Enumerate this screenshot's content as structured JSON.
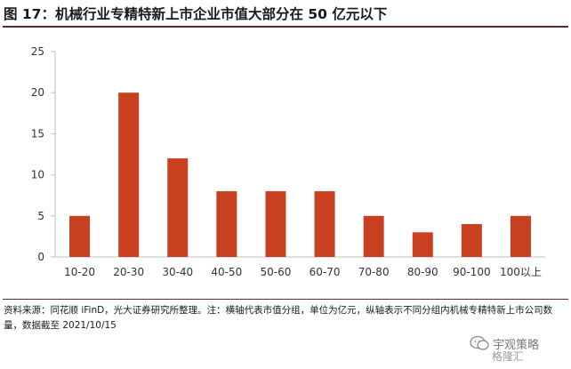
{
  "figure": {
    "title": "图 17：机械行业专精特新上市企业市值大部分在 50 亿元以下",
    "source": "资料来源：同花顺 iFinD，光大证券研究所整理。注：横轴代表市值分组，单位为亿元，纵轴表示不同分组内机械专精特新上市公司数量，数据截至 2021/10/15"
  },
  "watermark": {
    "text": "宇观策略",
    "sub_text": "格隆汇",
    "icon": "wechat-bubble-icon"
  },
  "chart_data": {
    "type": "bar",
    "categories": [
      "10-20",
      "20-30",
      "30-40",
      "40-50",
      "50-60",
      "60-70",
      "70-80",
      "80-90",
      "90-100",
      "100以上"
    ],
    "values": [
      5,
      20,
      12,
      8,
      8,
      8,
      5,
      3,
      4,
      5
    ],
    "title": "",
    "xlabel": "",
    "ylabel": "",
    "ylim": [
      0,
      25
    ],
    "yticks": [
      0,
      5,
      10,
      15,
      20,
      25
    ],
    "grid": false,
    "legend": "none",
    "bar_color": "#c8401f",
    "axis_color": "#bfbfbf"
  }
}
